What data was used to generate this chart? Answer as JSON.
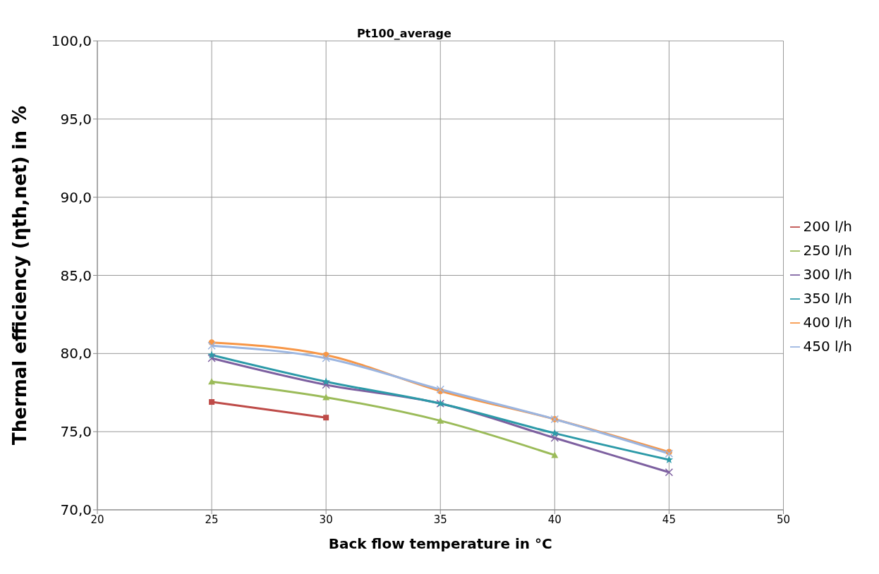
{
  "chart_data": {
    "type": "line",
    "title": "Pt100_average",
    "xlabel": "Back flow temperature in °C",
    "ylabel": "Thermal efficiency (ηth,net) in %",
    "xlim": [
      20,
      50
    ],
    "xticks": [
      20,
      25,
      30,
      35,
      40,
      45,
      50
    ],
    "ylim": [
      70,
      100
    ],
    "yticks": [
      {
        "value": 70,
        "label": "70,0"
      },
      {
        "value": 75,
        "label": "75,0"
      },
      {
        "value": 80,
        "label": "80,0"
      },
      {
        "value": 85,
        "label": "85,0"
      },
      {
        "value": 90,
        "label": "90,0"
      },
      {
        "value": 95,
        "label": "95,0"
      },
      {
        "value": 100,
        "label": "100,0"
      }
    ],
    "grid": true,
    "legend": "right",
    "series": [
      {
        "name": "200 l/h",
        "color": "#be4b48",
        "marker": "square",
        "x": [
          25,
          30
        ],
        "values": [
          76.9,
          75.9
        ]
      },
      {
        "name": "250 l/h",
        "color": "#9bbb59",
        "marker": "triangle",
        "x": [
          25,
          30,
          35,
          40
        ],
        "values": [
          78.2,
          77.2,
          75.7,
          73.5
        ]
      },
      {
        "name": "300 l/h",
        "color": "#7d60a0",
        "marker": "cross",
        "x": [
          25,
          30,
          35,
          40,
          45
        ],
        "values": [
          79.7,
          78.0,
          76.8,
          74.6,
          72.4
        ]
      },
      {
        "name": "350 l/h",
        "color": "#2c9aa8",
        "marker": "star",
        "x": [
          25,
          30,
          35,
          40,
          45
        ],
        "values": [
          79.9,
          78.2,
          76.8,
          74.9,
          73.2
        ]
      },
      {
        "name": "400 l/h",
        "color": "#f79646",
        "marker": "circle",
        "x": [
          25,
          30,
          35,
          40,
          45
        ],
        "values": [
          80.7,
          79.9,
          77.6,
          75.8,
          73.7
        ]
      },
      {
        "name": "450 l/h",
        "color": "#9bb5e0",
        "marker": "cross",
        "x": [
          25,
          30,
          35,
          40,
          45
        ],
        "values": [
          80.5,
          79.7,
          77.7,
          75.8,
          73.6
        ]
      }
    ]
  }
}
